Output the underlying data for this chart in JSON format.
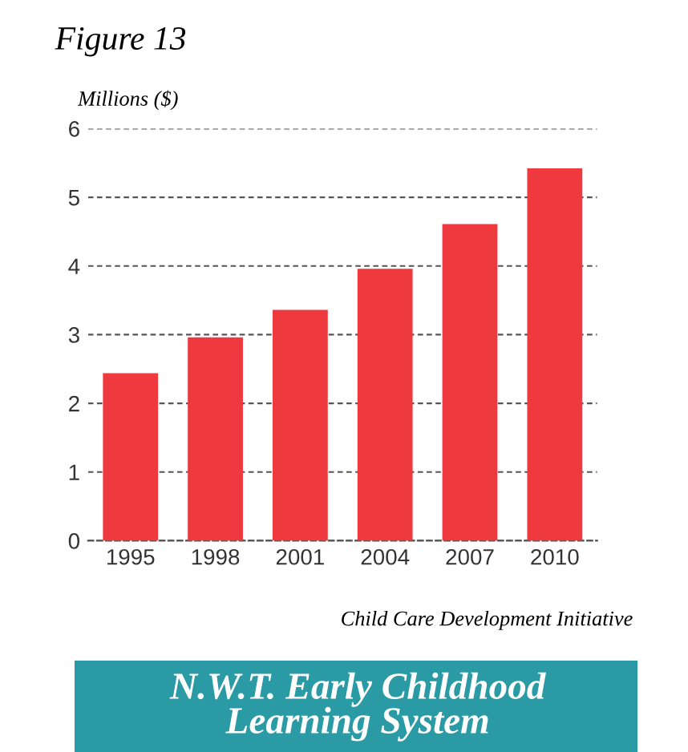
{
  "chart_data": {
    "type": "bar",
    "title": "Figure 13",
    "ylabel": "Millions ($)",
    "categories": [
      "1995",
      "1998",
      "2001",
      "2004",
      "2007",
      "2010"
    ],
    "values": [
      2.44,
      2.96,
      3.36,
      3.96,
      4.61,
      5.42
    ],
    "color": "#ee3a3f",
    "ylim": [
      0,
      6
    ],
    "yticks": [
      0,
      1,
      2,
      3,
      4,
      5,
      6
    ],
    "grid": "y",
    "annotations": [
      "Child Care Development Initiative",
      "N.W.T. Early Childhood\nLearning System"
    ]
  }
}
